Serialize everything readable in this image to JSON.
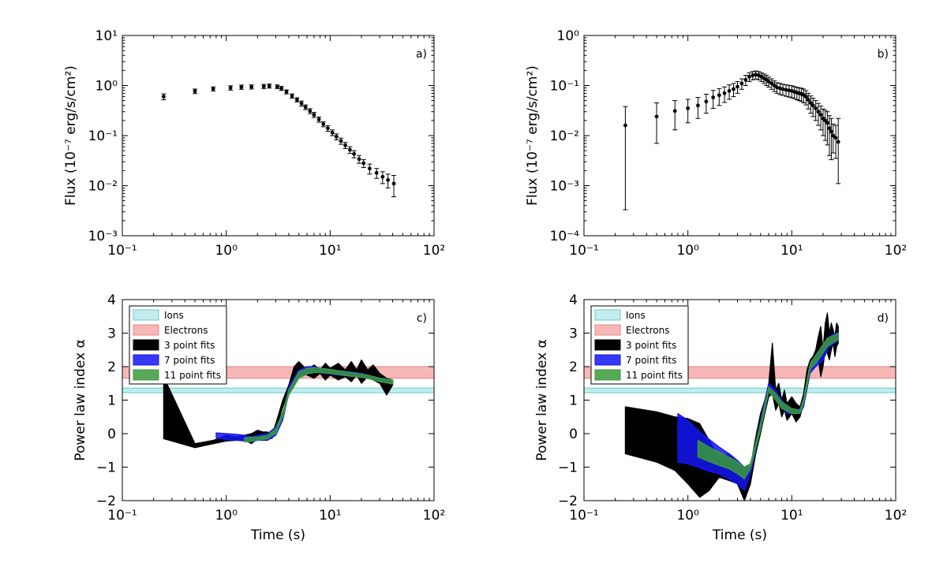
{
  "chart_data": [
    {
      "panel": "a",
      "type": "scatter",
      "panel_label": "a)",
      "xscale": "log",
      "yscale": "log",
      "xlim": [
        0.1,
        100
      ],
      "ylim": [
        0.001,
        10
      ],
      "ylabel": "Flux (10⁻⁷ erg/s/cm²)",
      "xlabel": "",
      "xticks": [
        "10⁻¹",
        "10⁰",
        "10¹",
        "10²"
      ],
      "yticks": [
        "10⁻³",
        "10⁻²",
        "10⁻¹",
        "10⁰",
        "10¹"
      ],
      "x": [
        0.25,
        0.5,
        0.75,
        1.1,
        1.4,
        1.75,
        2.3,
        2.6,
        3.1,
        3.4,
        3.8,
        4.3,
        4.8,
        5.3,
        5.8,
        6.4,
        7.0,
        7.8,
        8.6,
        9.5,
        10.5,
        11.5,
        12.7,
        14.0,
        15.5,
        17.0,
        19.0,
        21.0,
        24.0,
        28.0,
        32.0,
        36.0,
        41.0
      ],
      "y": [
        0.6,
        0.77,
        0.86,
        0.9,
        0.93,
        0.94,
        0.96,
        0.98,
        0.95,
        0.88,
        0.75,
        0.62,
        0.52,
        0.44,
        0.37,
        0.31,
        0.26,
        0.21,
        0.17,
        0.14,
        0.115,
        0.095,
        0.078,
        0.064,
        0.052,
        0.043,
        0.034,
        0.028,
        0.022,
        0.018,
        0.015,
        0.013,
        0.011
      ],
      "yerr": [
        0.08,
        0.08,
        0.08,
        0.09,
        0.09,
        0.09,
        0.09,
        0.09,
        0.08,
        0.08,
        0.07,
        0.06,
        0.05,
        0.05,
        0.04,
        0.035,
        0.03,
        0.025,
        0.02,
        0.018,
        0.015,
        0.013,
        0.011,
        0.009,
        0.008,
        0.007,
        0.006,
        0.005,
        0.005,
        0.004,
        0.004,
        0.004,
        0.005
      ]
    },
    {
      "panel": "b",
      "type": "scatter",
      "panel_label": "b)",
      "xscale": "log",
      "yscale": "log",
      "xlim": [
        0.1,
        100
      ],
      "ylim": [
        0.0001,
        1
      ],
      "ylabel": "Flux (10⁻⁷ erg/s/cm²)",
      "xlabel": "",
      "xticks": [
        "10⁻¹",
        "10⁰",
        "10¹",
        "10²"
      ],
      "yticks": [
        "10⁻⁴",
        "10⁻³",
        "10⁻²",
        "10⁻¹",
        "10⁰"
      ],
      "x": [
        0.25,
        0.5,
        0.75,
        1.0,
        1.25,
        1.5,
        1.75,
        2.0,
        2.25,
        2.5,
        2.75,
        3.0,
        3.3,
        3.6,
        3.9,
        4.2,
        4.5,
        4.8,
        5.1,
        5.4,
        5.7,
        6.0,
        6.4,
        6.8,
        7.2,
        7.7,
        8.2,
        8.8,
        9.4,
        10.0,
        10.6,
        11.2,
        11.8,
        12.4,
        13.0,
        13.7,
        14.4,
        15.2,
        16.0,
        17.0,
        18.0,
        19.0,
        20.0,
        21.0,
        22.0,
        23.0,
        24.0,
        25.0,
        26.5,
        28.0
      ],
      "y": [
        0.016,
        0.024,
        0.031,
        0.035,
        0.04,
        0.048,
        0.058,
        0.064,
        0.07,
        0.078,
        0.085,
        0.095,
        0.11,
        0.13,
        0.15,
        0.16,
        0.165,
        0.16,
        0.15,
        0.14,
        0.13,
        0.12,
        0.11,
        0.1,
        0.092,
        0.088,
        0.085,
        0.082,
        0.08,
        0.078,
        0.075,
        0.072,
        0.07,
        0.068,
        0.065,
        0.06,
        0.052,
        0.045,
        0.04,
        0.035,
        0.03,
        0.026,
        0.022,
        0.02,
        0.018,
        0.014,
        0.012,
        0.01,
        0.009,
        0.0075
      ],
      "y_low": [
        0.00033,
        0.007,
        0.013,
        0.018,
        0.022,
        0.028,
        0.035,
        0.04,
        0.046,
        0.053,
        0.06,
        0.07,
        0.084,
        0.1,
        0.12,
        0.13,
        0.135,
        0.13,
        0.12,
        0.11,
        0.1,
        0.093,
        0.084,
        0.076,
        0.07,
        0.066,
        0.064,
        0.061,
        0.059,
        0.057,
        0.055,
        0.052,
        0.05,
        0.048,
        0.045,
        0.041,
        0.034,
        0.028,
        0.024,
        0.02,
        0.016,
        0.013,
        0.01,
        0.008,
        0.0065,
        0.004,
        0.0033,
        0.0045,
        0.0035,
        0.0011
      ],
      "y_high": [
        0.038,
        0.045,
        0.05,
        0.053,
        0.058,
        0.067,
        0.08,
        0.087,
        0.094,
        0.103,
        0.11,
        0.12,
        0.136,
        0.16,
        0.18,
        0.19,
        0.195,
        0.19,
        0.18,
        0.17,
        0.16,
        0.147,
        0.136,
        0.124,
        0.114,
        0.11,
        0.106,
        0.103,
        0.101,
        0.099,
        0.095,
        0.092,
        0.09,
        0.088,
        0.085,
        0.079,
        0.07,
        0.062,
        0.056,
        0.05,
        0.044,
        0.039,
        0.034,
        0.032,
        0.03,
        0.025,
        0.022,
        0.017,
        0.016,
        0.022
      ]
    },
    {
      "panel": "c",
      "type": "area",
      "panel_label": "c)",
      "xscale": "log",
      "yscale": "linear",
      "xlim": [
        0.1,
        100
      ],
      "ylim": [
        -2,
        4
      ],
      "ylabel": "Power law index α",
      "xlabel": "Time (s)",
      "xticks": [
        "10⁻¹",
        "10⁰",
        "10¹",
        "10²"
      ],
      "yticks": [
        "−2",
        "−1",
        "0",
        "1",
        "2",
        "3",
        "4"
      ],
      "legend_position": "top-left",
      "reference_bands": [
        {
          "name": "Ions",
          "range": [
            1.22,
            1.36
          ],
          "color": "#c4ecec",
          "edge": "#5fd0d0"
        },
        {
          "name": "Electrons",
          "range": [
            1.65,
            2.0
          ],
          "color": "#f7b7b7",
          "edge": "#e58585"
        }
      ],
      "series": [
        {
          "name": "3 point fits",
          "color": "#000000",
          "x": [
            0.25,
            0.5,
            0.75,
            1.0,
            1.25,
            1.5,
            1.75,
            2.0,
            2.25,
            2.5,
            2.75,
            3.0,
            3.5,
            4.0,
            4.5,
            5.0,
            6.0,
            7.0,
            8.0,
            9.0,
            10.0,
            12.0,
            14.0,
            16.0,
            18.0,
            20.0,
            23.0,
            26.0,
            30.0,
            35.0,
            40.0
          ],
          "lower": [
            -0.15,
            -0.42,
            -0.3,
            -0.22,
            -0.2,
            -0.18,
            -0.3,
            -0.15,
            -0.05,
            -0.1,
            -0.15,
            0.1,
            0.8,
            1.3,
            1.6,
            1.8,
            1.75,
            1.65,
            1.8,
            1.6,
            1.75,
            1.6,
            1.7,
            1.55,
            1.75,
            1.5,
            1.7,
            1.6,
            1.5,
            1.15,
            1.45
          ],
          "upper": [
            1.7,
            -0.3,
            -0.2,
            -0.05,
            -0.1,
            -0.05,
            0.0,
            0.1,
            0.05,
            0.05,
            -0.05,
            0.3,
            1.0,
            1.45,
            2.0,
            2.15,
            1.9,
            2.05,
            1.9,
            2.1,
            1.95,
            2.1,
            1.9,
            2.15,
            1.9,
            2.2,
            1.9,
            2.05,
            1.8,
            1.65,
            1.6
          ]
        },
        {
          "name": "7 point fits",
          "color": "#1414f5",
          "x": [
            0.8,
            1.0,
            1.25,
            1.5,
            1.75,
            2.0,
            2.5,
            3.0,
            3.5,
            4.0,
            5.0,
            6.0,
            7.0,
            8.0,
            10.0,
            12.0,
            15.0,
            20.0,
            25.0,
            30.0,
            40.0
          ],
          "lower": [
            -0.12,
            -0.18,
            -0.2,
            -0.22,
            -0.25,
            -0.2,
            -0.2,
            -0.05,
            0.4,
            1.2,
            1.7,
            1.8,
            1.85,
            1.82,
            1.78,
            1.75,
            1.72,
            1.7,
            1.62,
            1.55,
            1.5
          ],
          "upper": [
            0.02,
            0.0,
            -0.02,
            -0.05,
            -0.1,
            -0.05,
            0.0,
            0.2,
            0.6,
            1.4,
            1.9,
            2.0,
            2.0,
            1.95,
            1.9,
            1.88,
            1.85,
            1.8,
            1.72,
            1.66,
            1.6
          ]
        },
        {
          "name": "11 point fits",
          "color": "#3a9a3a",
          "x": [
            1.5,
            2.0,
            2.5,
            3.0,
            3.5,
            4.0,
            5.0,
            6.0,
            7.0,
            8.0,
            10.0,
            12.0,
            15.0,
            20.0,
            25.0,
            30.0,
            40.0
          ],
          "lower": [
            -0.25,
            -0.2,
            -0.15,
            0.0,
            0.5,
            1.15,
            1.65,
            1.78,
            1.82,
            1.82,
            1.8,
            1.76,
            1.72,
            1.68,
            1.62,
            1.55,
            1.48
          ],
          "upper": [
            -0.12,
            -0.1,
            -0.05,
            0.15,
            0.65,
            1.3,
            1.85,
            1.95,
            1.97,
            1.95,
            1.92,
            1.88,
            1.84,
            1.78,
            1.72,
            1.66,
            1.6
          ]
        }
      ]
    },
    {
      "panel": "d",
      "type": "area",
      "panel_label": "d)",
      "xscale": "log",
      "yscale": "linear",
      "xlim": [
        0.1,
        100
      ],
      "ylim": [
        -2,
        4
      ],
      "ylabel": "Power law index α",
      "xlabel": "Time (s)",
      "xticks": [
        "10⁻¹",
        "10⁰",
        "10¹",
        "10²"
      ],
      "yticks": [
        "−2",
        "−1",
        "0",
        "1",
        "2",
        "3",
        "4"
      ],
      "legend_position": "top-left",
      "reference_bands": [
        {
          "name": "Ions",
          "range": [
            1.22,
            1.36
          ],
          "color": "#c4ecec",
          "edge": "#5fd0d0"
        },
        {
          "name": "Electrons",
          "range": [
            1.65,
            2.0
          ],
          "color": "#f7b7b7",
          "edge": "#e58585"
        }
      ],
      "series": [
        {
          "name": "3 point fits",
          "color": "#000000",
          "x": [
            0.25,
            0.5,
            0.75,
            1.0,
            1.3,
            1.6,
            2.0,
            2.5,
            3.0,
            3.5,
            4.0,
            4.5,
            5.0,
            5.5,
            6.0,
            6.5,
            7.0,
            7.5,
            8.0,
            8.5,
            9.0,
            9.5,
            10.0,
            11.0,
            12.0,
            13.0,
            14.0,
            15.0,
            16.0,
            17.0,
            18.0,
            19.0,
            20.0,
            21.0,
            22.0,
            23.0,
            24.0,
            25.0,
            26.0,
            27.0,
            28.0
          ],
          "lower": [
            -0.6,
            -0.85,
            -1.1,
            -1.5,
            -1.9,
            -1.7,
            -1.3,
            -1.4,
            -1.5,
            -2.0,
            -1.5,
            -0.6,
            0.0,
            0.6,
            1.1,
            1.2,
            0.7,
            0.9,
            0.5,
            0.7,
            0.4,
            0.5,
            0.6,
            0.35,
            0.5,
            0.9,
            1.7,
            1.9,
            1.95,
            2.1,
            2.2,
            1.7,
            2.0,
            2.5,
            2.4,
            2.2,
            2.5,
            2.7,
            2.3,
            2.6,
            2.7
          ],
          "upper": [
            0.8,
            0.65,
            0.5,
            0.45,
            0.3,
            -0.2,
            -0.7,
            -0.6,
            -0.9,
            -1.0,
            -1.0,
            -0.1,
            0.6,
            1.0,
            1.5,
            2.7,
            1.3,
            1.5,
            1.0,
            1.3,
            0.9,
            1.0,
            1.1,
            0.9,
            0.8,
            1.2,
            1.9,
            2.2,
            2.3,
            2.5,
            2.9,
            3.2,
            2.5,
            3.3,
            3.6,
            3.0,
            3.3,
            3.1,
            2.9,
            3.3,
            3.2
          ]
        },
        {
          "name": "7 point fits",
          "color": "#1414f5",
          "x": [
            0.8,
            1.0,
            1.25,
            1.5,
            2.0,
            2.5,
            3.0,
            3.5,
            4.0,
            4.5,
            5.0,
            6.0,
            7.0,
            8.0,
            9.0,
            10.0,
            11.0,
            12.0,
            13.0,
            15.0,
            17.0,
            20.0,
            23.0,
            26.0,
            28.0
          ],
          "lower": [
            -0.85,
            -0.9,
            -1.0,
            -1.1,
            -1.2,
            -1.35,
            -1.5,
            -1.7,
            -1.2,
            -0.5,
            0.2,
            1.3,
            1.0,
            0.8,
            0.6,
            0.6,
            0.6,
            0.6,
            0.8,
            1.8,
            2.0,
            2.2,
            2.6,
            2.7,
            2.8
          ],
          "upper": [
            0.6,
            0.4,
            0.1,
            -0.1,
            -0.4,
            -0.6,
            -0.8,
            -1.0,
            -0.9,
            -0.3,
            0.4,
            1.5,
            1.3,
            1.0,
            0.8,
            0.75,
            0.7,
            0.75,
            1.0,
            2.1,
            2.3,
            2.6,
            2.9,
            3.0,
            3.0
          ]
        },
        {
          "name": "11 point fits",
          "color": "#3a9a3a",
          "x": [
            1.25,
            1.5,
            2.0,
            2.5,
            3.0,
            3.5,
            4.0,
            5.0,
            6.0,
            7.0,
            8.0,
            10.0,
            12.0,
            13.0,
            15.0,
            18.0,
            22.0,
            26.0,
            28.0
          ],
          "lower": [
            -0.7,
            -0.8,
            -0.95,
            -1.05,
            -1.2,
            -1.35,
            -1.05,
            0.1,
            1.25,
            1.0,
            0.75,
            0.6,
            0.6,
            0.9,
            1.9,
            2.2,
            2.6,
            2.75,
            2.8
          ],
          "upper": [
            -0.2,
            -0.35,
            -0.55,
            -0.7,
            -0.85,
            -1.0,
            -0.9,
            0.3,
            1.4,
            1.2,
            0.95,
            0.75,
            0.7,
            1.05,
            2.1,
            2.45,
            2.85,
            2.95,
            3.0
          ]
        }
      ]
    }
  ]
}
